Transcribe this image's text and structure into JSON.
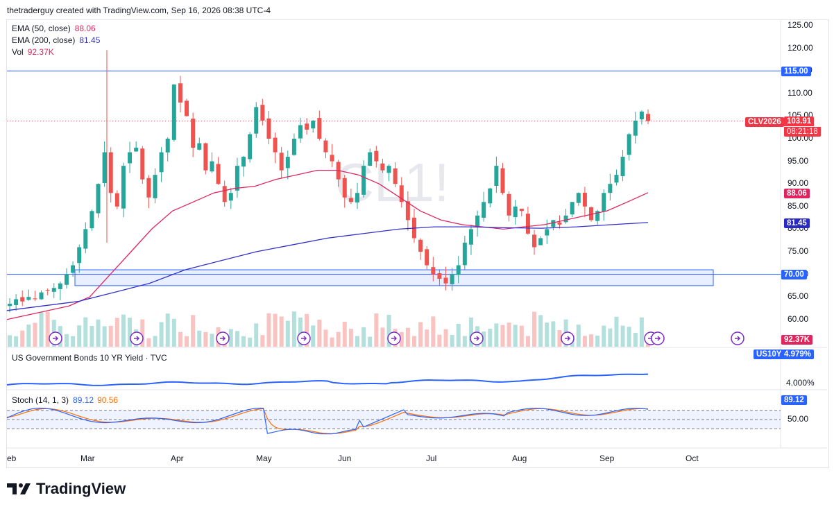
{
  "header": {
    "text": "thetraderguy created with TradingView.com, Sep 16, 2026 08:38 UTC-4"
  },
  "brand": {
    "name": "TradingView"
  },
  "watermark": "CL1!",
  "legend": {
    "ema50": {
      "label": "EMA (50, close)",
      "value": "88.06",
      "color": "#e0245e"
    },
    "ema200": {
      "label": "EMA (200, close)",
      "value": "81.45",
      "color": "#3030c8"
    },
    "vol": {
      "label": "Vol",
      "value": "92.37K",
      "color": "#e0245e"
    },
    "yield": {
      "label": "US Government Bonds 10 YR Yield · TVC"
    },
    "stoch": {
      "label": "Stoch (14, 1, 3)",
      "k": "89.12",
      "d": "90.56",
      "k_color": "#2962ff",
      "d_color": "#ff6d00"
    }
  },
  "price_axis": [
    "125.00",
    "120.00",
    "115.00",
    "110.00",
    "105.00",
    "100.00",
    "95.00",
    "90.00",
    "85.00",
    "80.00",
    "75.00",
    "70.00",
    "65.00",
    "60.00"
  ],
  "tags": {
    "level115": {
      "text": "115.00",
      "color": "#2962ff"
    },
    "symbol": {
      "text": "CLV2026",
      "color": "#f23645"
    },
    "last": {
      "text": "103.91",
      "color": "#f23645"
    },
    "countdown": {
      "text": "08:21:18",
      "color": "#f23645"
    },
    "ema50": {
      "text": "88.06",
      "color": "#e0245e"
    },
    "ema200": {
      "text": "81.45",
      "color": "#2929c5"
    },
    "level70": {
      "text": "70.00",
      "color": "#2962ff"
    },
    "vol": {
      "text": "92.37K",
      "color": "#e0245e"
    },
    "yield_symbol": {
      "text": "US10Y",
      "color": "#2962ff"
    },
    "yield_value": {
      "text": "4.979%",
      "color": "#2962ff"
    },
    "yield_axis": {
      "text": "4.000%"
    },
    "stoch_k": {
      "text": "89.12",
      "color": "#2962ff"
    },
    "stoch_axis": {
      "text": "50.00"
    }
  },
  "months": [
    "eb",
    "Mar",
    "Apr",
    "May",
    "Jun",
    "Jul",
    "Aug",
    "Sep",
    "Oct"
  ],
  "chart_data": {
    "type": "candlestick",
    "symbol": "CL1!",
    "ylim": [
      58,
      127
    ],
    "horizontal_levels": [
      115.0,
      70.0
    ],
    "zone": {
      "low": 67.5,
      "high": 71.0
    },
    "last_price": 103.91,
    "ohlc_anchor_closes": [
      63.5,
      64.5,
      64,
      65,
      64.5,
      66,
      66.5,
      67,
      68,
      70,
      72,
      76,
      80,
      84,
      90,
      97,
      88,
      85,
      94,
      97,
      98,
      91,
      87,
      92,
      97,
      100,
      112,
      108,
      105,
      98,
      99,
      93,
      95,
      90,
      86,
      88,
      94,
      96,
      101,
      107,
      104,
      100,
      97,
      93,
      96,
      100,
      103,
      102,
      104,
      100,
      97,
      95,
      91,
      87,
      86,
      88,
      94,
      97,
      95,
      93,
      94,
      90,
      86,
      82,
      78,
      75,
      72,
      70,
      69,
      68,
      70,
      72,
      77,
      80,
      83,
      86,
      89,
      94,
      88,
      83,
      85,
      84,
      79,
      76,
      78,
      80,
      82,
      81,
      83,
      86,
      88,
      85,
      82,
      84,
      88,
      90,
      92,
      96,
      101,
      104,
      106,
      103.91
    ],
    "ema50_values": [
      60,
      61,
      62,
      63,
      65,
      70,
      75,
      80,
      84,
      86,
      88,
      89,
      89.5,
      91,
      92,
      93,
      93,
      92,
      90,
      87,
      84,
      82,
      81,
      80.5,
      80,
      80.5,
      81,
      82,
      83,
      84,
      86,
      88.06
    ],
    "ema200_values": [
      62,
      63,
      64,
      66,
      68,
      71,
      73,
      75,
      76.5,
      78,
      79,
      80,
      80.5,
      80.5,
      80.3,
      80.2,
      80.5,
      81,
      81.45
    ],
    "volume_unit": "K",
    "volume_last": 92.37,
    "us10y": {
      "last": 4.979,
      "axis_label": 4.0
    },
    "stoch": {
      "k_last": 89.12,
      "d_last": 90.56,
      "axis_label": 50.0
    }
  }
}
